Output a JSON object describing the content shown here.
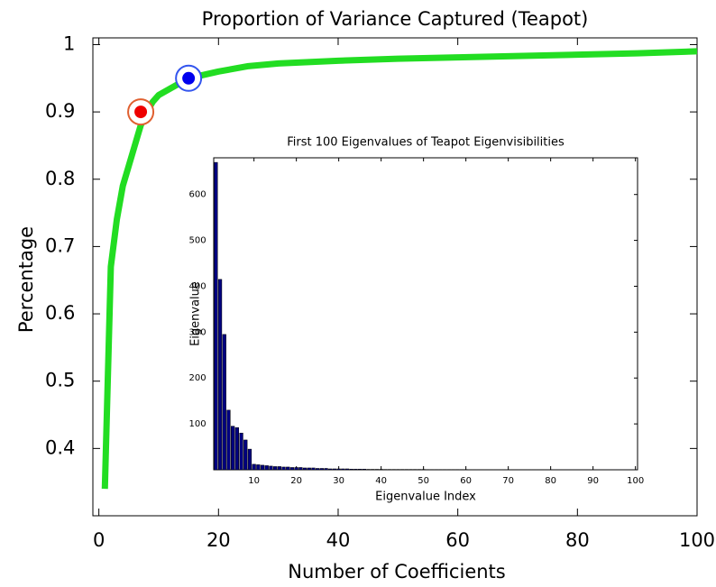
{
  "chart_data": [
    {
      "type": "line",
      "title": "Proportion of Variance Captured (Teapot)",
      "xlabel": "Number of Coefficients",
      "ylabel": "Percentage",
      "xlim": [
        -1,
        100
      ],
      "ylim": [
        0.3,
        1.01
      ],
      "xticks": [
        0,
        20,
        40,
        60,
        80,
        100
      ],
      "yticks": [
        0.4,
        0.5,
        0.6,
        0.7,
        0.8,
        0.9,
        1
      ],
      "series": [
        {
          "color": "#22dd22",
          "x": [
            1,
            2,
            3,
            4,
            5,
            6,
            7,
            8,
            9,
            10,
            12,
            15,
            20,
            25,
            30,
            40,
            50,
            60,
            70,
            80,
            90,
            100
          ],
          "values": [
            0.34,
            0.67,
            0.74,
            0.79,
            0.82,
            0.85,
            0.88,
            0.9,
            0.915,
            0.925,
            0.935,
            0.95,
            0.96,
            0.968,
            0.972,
            0.976,
            0.979,
            0.981,
            0.983,
            0.985,
            0.987,
            0.99
          ]
        }
      ],
      "points": [
        {
          "x": 7,
          "y": 0.9,
          "color": "#ee0000",
          "ring": "#e06030"
        },
        {
          "x": 15,
          "y": 0.95,
          "color": "#0000ee",
          "ring": "#3355ee"
        }
      ]
    },
    {
      "type": "bar",
      "title": "First 100 Eigenvalues of Teapot Eigenvisibilities",
      "xlabel": "Eigenvalue Index",
      "ylabel": "Eigenvalue",
      "xlim": [
        0.5,
        100.5
      ],
      "ylim": [
        0,
        680
      ],
      "xticks": [
        10,
        20,
        30,
        40,
        50,
        60,
        70,
        80,
        90,
        100
      ],
      "yticks": [
        100,
        200,
        300,
        400,
        500,
        600
      ],
      "color": "#000080",
      "x": [
        1,
        2,
        3,
        4,
        5,
        6,
        7,
        8,
        9,
        10,
        11,
        12,
        13,
        14,
        15,
        16,
        17,
        18,
        19,
        20,
        21,
        22,
        23,
        24,
        25,
        26,
        27,
        28,
        29,
        30,
        31,
        32,
        33,
        34,
        35,
        36,
        37,
        38,
        39,
        40,
        41,
        42,
        43,
        44,
        45,
        46,
        47,
        48,
        49,
        50,
        51,
        52,
        53,
        54,
        55,
        56,
        57,
        58,
        59,
        60,
        61,
        62,
        63,
        64,
        65,
        66,
        67,
        68,
        69,
        70,
        71,
        72,
        73,
        74,
        75,
        76,
        77,
        78,
        79,
        80,
        81,
        82,
        83,
        84,
        85,
        86,
        87,
        88,
        89,
        90,
        91,
        92,
        93,
        94,
        95,
        96,
        97,
        98,
        99,
        100
      ],
      "values": [
        670,
        415,
        295,
        130,
        95,
        92,
        80,
        65,
        45,
        12,
        11,
        10,
        9,
        8,
        7,
        7,
        6,
        6,
        5,
        5,
        5,
        4,
        4,
        4,
        3,
        3,
        3,
        2,
        2,
        2,
        2,
        2,
        1.5,
        1.5,
        1.5,
        1.5,
        1,
        1,
        1,
        1,
        0.8,
        0.8,
        0.8,
        0.8,
        0.8,
        0.8,
        0.8,
        0.8,
        0.8,
        0.8,
        0.6,
        0.6,
        0.6,
        0.6,
        0.6,
        0.6,
        0.6,
        0.6,
        0.6,
        0.6,
        0.5,
        0.5,
        0.5,
        0.5,
        0.5,
        0.5,
        0.5,
        0.5,
        0.5,
        0.5,
        0.5,
        0.5,
        0.5,
        0.5,
        0.5,
        0.5,
        0.5,
        0.5,
        0.5,
        0.5,
        0.4,
        0.4,
        0.4,
        0.4,
        0.4,
        0.4,
        0.4,
        0.4,
        0.4,
        0.4,
        0.4,
        0.4,
        0.4,
        0.4,
        0.4,
        0.4,
        0.4,
        0.4,
        0.4,
        0.4
      ]
    }
  ]
}
